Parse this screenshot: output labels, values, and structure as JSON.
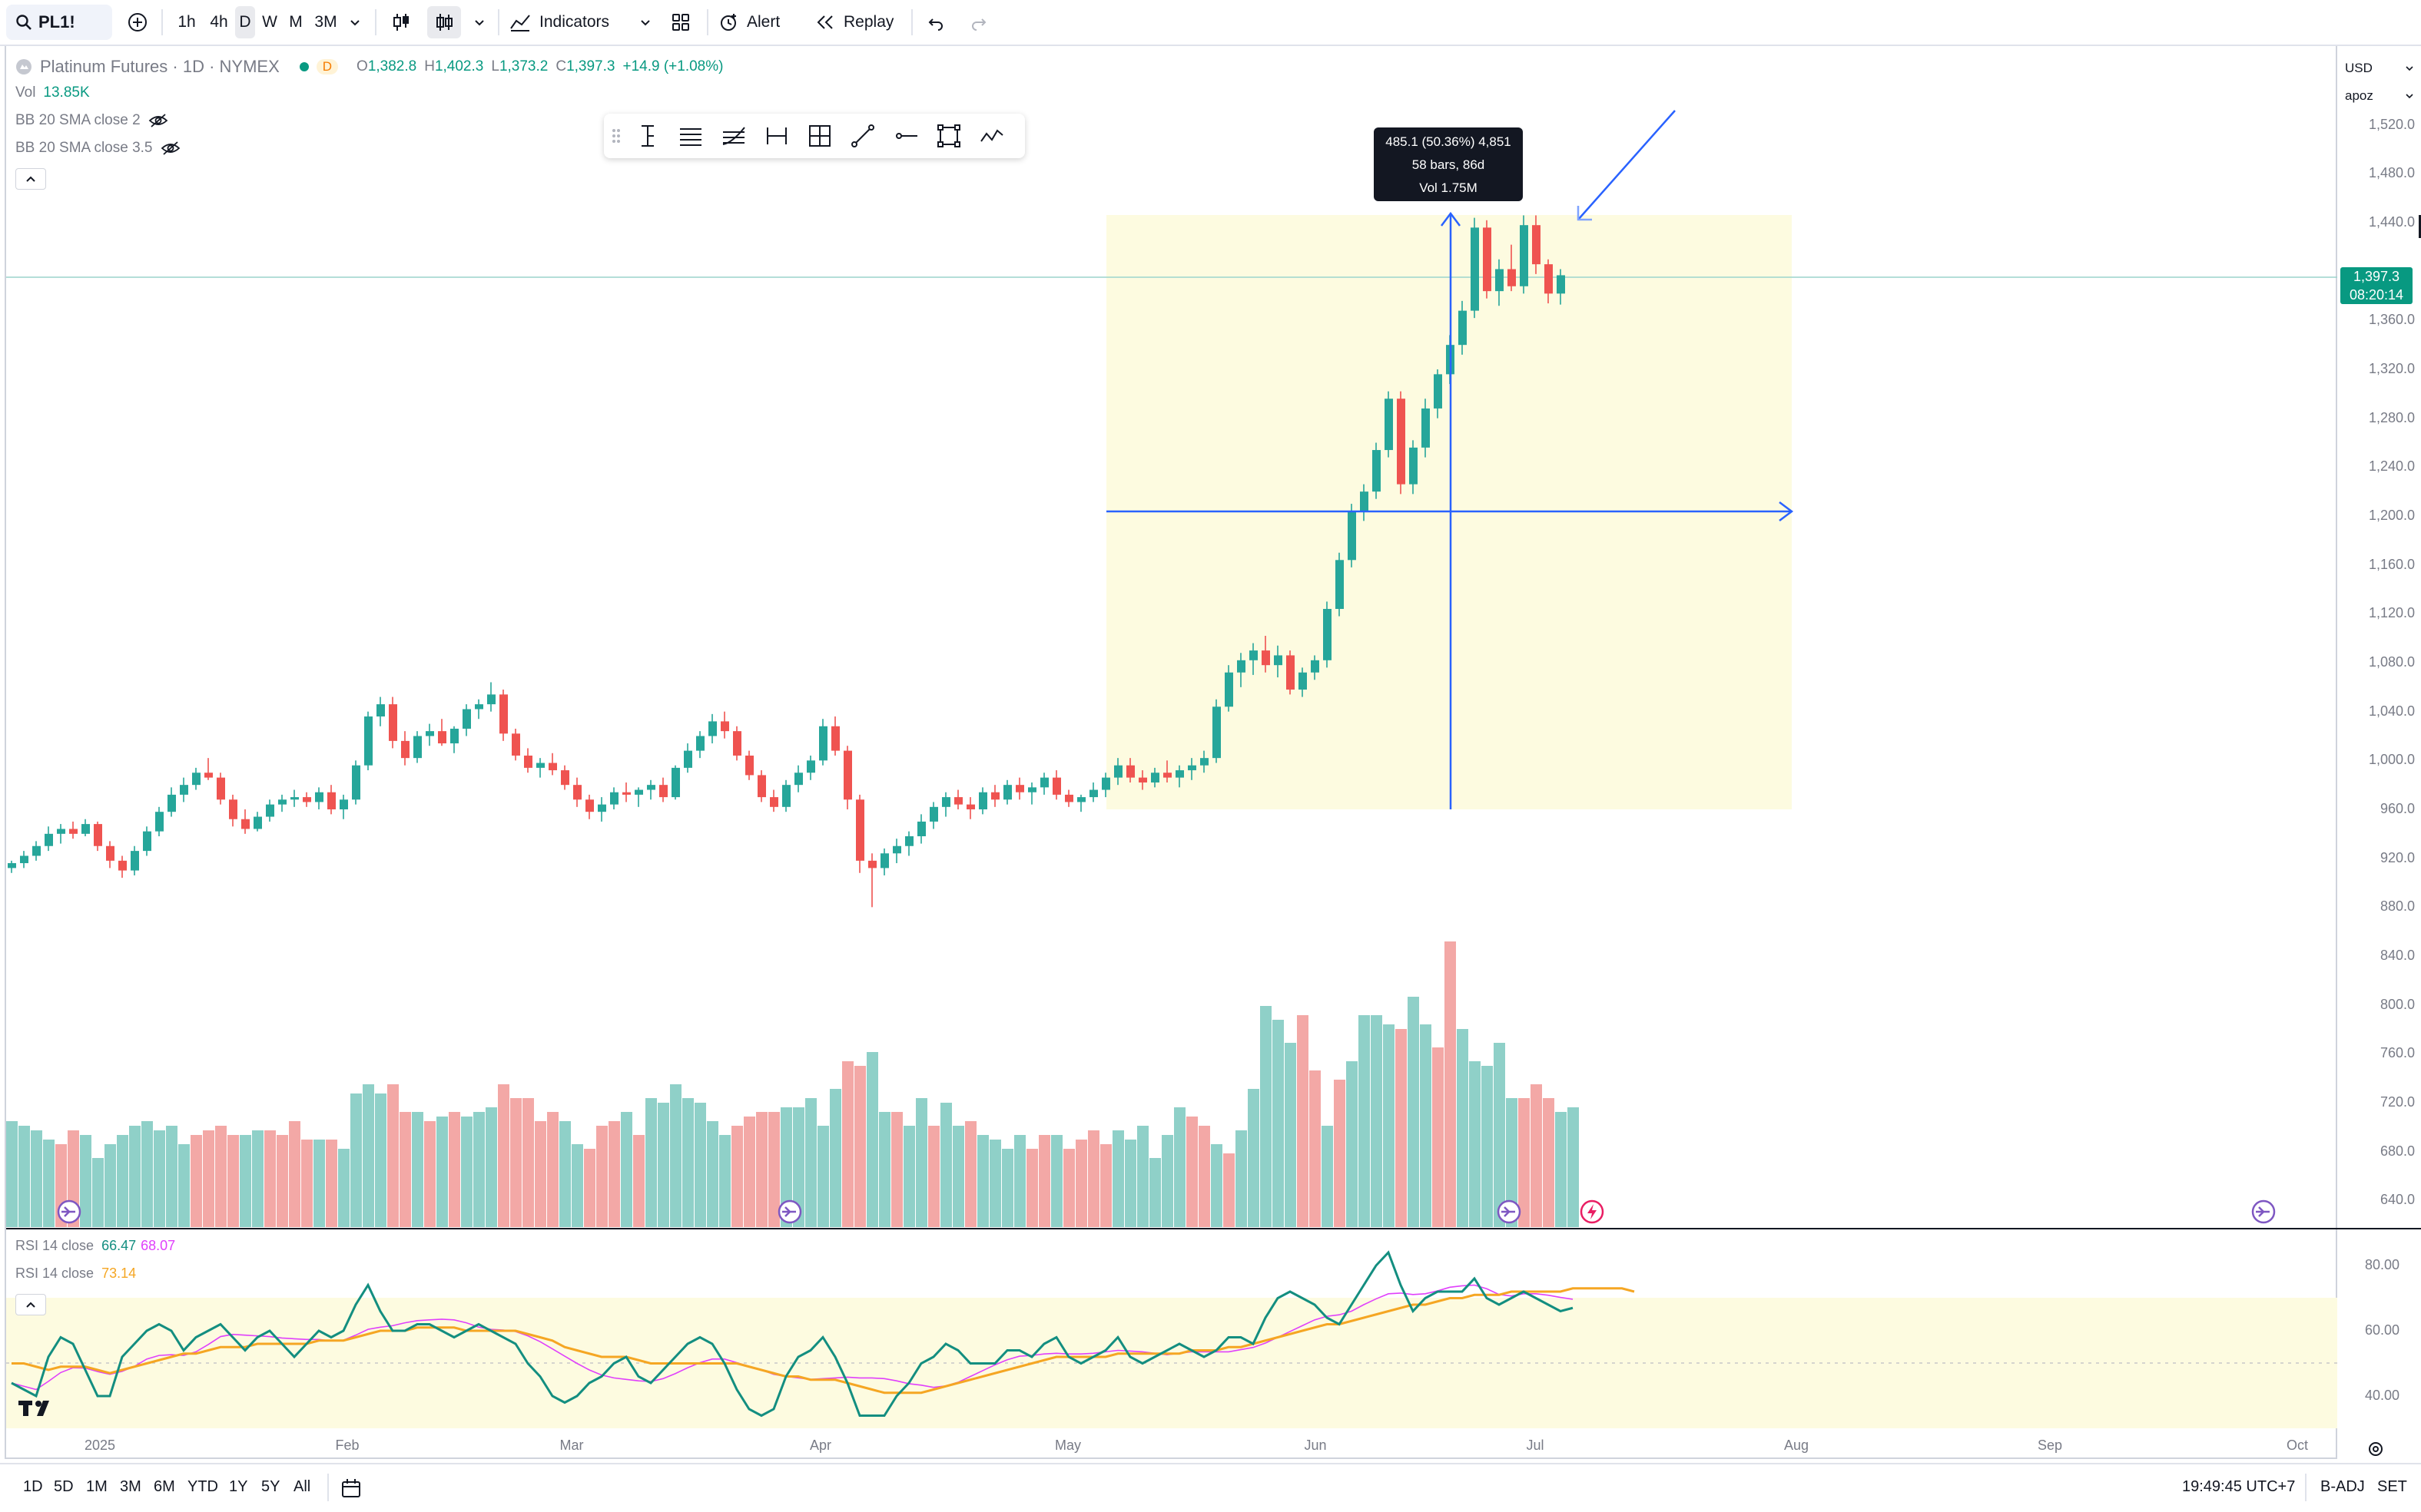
{
  "toolbar": {
    "symbol": "PL1!",
    "intervals": [
      "1h",
      "4h",
      "D",
      "W",
      "M",
      "3M"
    ],
    "active_interval": "D",
    "indicators_label": "Indicators",
    "alert_label": "Alert",
    "replay_label": "Replay"
  },
  "legend": {
    "title": "Platinum Futures · 1D · NYMEX",
    "badge": "D",
    "open_label": "O",
    "open": "1,382.8",
    "high_label": "H",
    "high": "1,402.3",
    "low_label": "L",
    "low": "1,373.2",
    "close_label": "C",
    "close": "1,397.3",
    "change": "+14.9 (+1.08%)",
    "vol_label": "Vol",
    "vol_value": "13.85K",
    "bb1": "BB 20 SMA close 2",
    "bb2": "BB 20 SMA close 3.5"
  },
  "rsi_legend": {
    "rsi1_label": "RSI 14 close",
    "rsi1_value_a": "66.47",
    "rsi1_value_b": "68.07",
    "rsi2_label": "RSI 14 close",
    "rsi2_value": "73.14"
  },
  "measure": {
    "line1": "485.1 (50.36%) 4,851",
    "line2": "58 bars, 86d",
    "line3": "Vol 1.75M"
  },
  "price_axis": {
    "currency": "USD",
    "unit": "apoz",
    "labels": [
      "1,520.0",
      "1,480.0",
      "1,440.0",
      "1,360.0",
      "1,320.0",
      "1,280.0",
      "1,240.0",
      "1,200.0",
      "1,160.0",
      "1,120.0",
      "1,080.0",
      "1,040.0",
      "1,000.0",
      "960.0",
      "920.0",
      "880.0",
      "840.0",
      "800.0",
      "760.0",
      "720.0",
      "680.0",
      "640.0"
    ],
    "last_price": "1,397.3",
    "countdown": "08:20:14",
    "rsi_labels": [
      "80.00",
      "60.00",
      "40.00"
    ]
  },
  "time_axis": {
    "labels": [
      "2025",
      "Feb",
      "Mar",
      "Apr",
      "May",
      "Jun",
      "Jul",
      "Aug",
      "Sep",
      "Oct"
    ]
  },
  "bottom": {
    "ranges": [
      "1D",
      "5D",
      "1M",
      "3M",
      "6M",
      "YTD",
      "1Y",
      "5Y",
      "All"
    ],
    "clock": "19:49:45 UTC+7",
    "adj": "B-ADJ",
    "session": "SET"
  },
  "colors": {
    "up": "#26a69a",
    "down": "#ef5350",
    "vol_up": "#8fd0c8",
    "vol_down": "#f3a8a6",
    "measure_bg": "#fdfbe0",
    "measure_line": "#2962ff",
    "rsi_line": "#138e80",
    "rsi_ma": "#e040fb",
    "rsi2": "#f5a623"
  },
  "chart_data": {
    "type": "candlestick",
    "note_units": "price USD/oz",
    "candles": [
      [
        912,
        918,
        908,
        916
      ],
      [
        916,
        926,
        912,
        922
      ],
      [
        922,
        934,
        918,
        930
      ],
      [
        930,
        946,
        926,
        940
      ],
      [
        940,
        948,
        932,
        944
      ],
      [
        944,
        950,
        936,
        940
      ],
      [
        940,
        952,
        938,
        948
      ],
      [
        948,
        950,
        926,
        930
      ],
      [
        930,
        934,
        912,
        918
      ],
      [
        918,
        922,
        904,
        910
      ],
      [
        910,
        930,
        906,
        926
      ],
      [
        926,
        946,
        922,
        942
      ],
      [
        942,
        962,
        938,
        958
      ],
      [
        958,
        978,
        954,
        972
      ],
      [
        972,
        986,
        966,
        980
      ],
      [
        980,
        994,
        976,
        990
      ],
      [
        990,
        1002,
        984,
        986
      ],
      [
        986,
        990,
        964,
        968
      ],
      [
        968,
        972,
        946,
        952
      ],
      [
        952,
        960,
        940,
        944
      ],
      [
        944,
        958,
        942,
        954
      ],
      [
        954,
        968,
        950,
        964
      ],
      [
        964,
        972,
        958,
        968
      ],
      [
        968,
        976,
        962,
        970
      ],
      [
        970,
        974,
        962,
        966
      ],
      [
        966,
        978,
        960,
        974
      ],
      [
        974,
        980,
        956,
        960
      ],
      [
        960,
        972,
        952,
        968
      ],
      [
        968,
        1000,
        964,
        996
      ],
      [
        996,
        1040,
        992,
        1036
      ],
      [
        1036,
        1052,
        1028,
        1046
      ],
      [
        1046,
        1052,
        1010,
        1016
      ],
      [
        1016,
        1024,
        996,
        1002
      ],
      [
        1002,
        1024,
        998,
        1020
      ],
      [
        1020,
        1030,
        1012,
        1024
      ],
      [
        1024,
        1034,
        1012,
        1014
      ],
      [
        1014,
        1028,
        1006,
        1026
      ],
      [
        1026,
        1046,
        1020,
        1042
      ],
      [
        1042,
        1050,
        1034,
        1046
      ],
      [
        1046,
        1064,
        1040,
        1054
      ],
      [
        1054,
        1058,
        1016,
        1022
      ],
      [
        1022,
        1026,
        1000,
        1004
      ],
      [
        1004,
        1010,
        990,
        994
      ],
      [
        994,
        1002,
        986,
        998
      ],
      [
        998,
        1006,
        988,
        992
      ],
      [
        992,
        996,
        976,
        980
      ],
      [
        980,
        986,
        962,
        968
      ],
      [
        968,
        972,
        952,
        958
      ],
      [
        958,
        970,
        950,
        964
      ],
      [
        964,
        978,
        960,
        974
      ],
      [
        974,
        982,
        966,
        972
      ],
      [
        972,
        978,
        962,
        976
      ],
      [
        976,
        984,
        968,
        980
      ],
      [
        980,
        986,
        966,
        970
      ],
      [
        970,
        996,
        968,
        994
      ],
      [
        994,
        1014,
        990,
        1008
      ],
      [
        1008,
        1024,
        1002,
        1020
      ],
      [
        1020,
        1038,
        1014,
        1032
      ],
      [
        1032,
        1040,
        1018,
        1024
      ],
      [
        1024,
        1028,
        1000,
        1004
      ],
      [
        1004,
        1008,
        984,
        988
      ],
      [
        988,
        992,
        966,
        970
      ],
      [
        970,
        976,
        958,
        962
      ],
      [
        962,
        984,
        958,
        980
      ],
      [
        980,
        996,
        974,
        990
      ],
      [
        990,
        1004,
        984,
        1000
      ],
      [
        1000,
        1034,
        996,
        1028
      ],
      [
        1028,
        1036,
        1004,
        1008
      ],
      [
        1008,
        1012,
        960,
        968
      ],
      [
        968,
        972,
        908,
        918
      ],
      [
        918,
        924,
        880,
        912
      ],
      [
        912,
        928,
        906,
        924
      ],
      [
        924,
        936,
        916,
        930
      ],
      [
        930,
        942,
        922,
        938
      ],
      [
        938,
        956,
        932,
        950
      ],
      [
        950,
        966,
        944,
        962
      ],
      [
        962,
        974,
        954,
        970
      ],
      [
        970,
        976,
        960,
        964
      ],
      [
        964,
        970,
        952,
        960
      ],
      [
        960,
        978,
        956,
        974
      ],
      [
        974,
        980,
        962,
        968
      ],
      [
        968,
        984,
        964,
        980
      ],
      [
        980,
        986,
        968,
        974
      ],
      [
        974,
        982,
        964,
        978
      ],
      [
        978,
        990,
        972,
        986
      ],
      [
        986,
        992,
        968,
        972
      ],
      [
        972,
        976,
        962,
        966
      ],
      [
        966,
        972,
        958,
        970
      ],
      [
        970,
        982,
        966,
        976
      ],
      [
        976,
        990,
        970,
        986
      ],
      [
        986,
        1002,
        980,
        996
      ],
      [
        996,
        1002,
        982,
        986
      ],
      [
        986,
        992,
        976,
        982
      ],
      [
        982,
        994,
        978,
        990
      ],
      [
        990,
        1000,
        982,
        986
      ],
      [
        986,
        996,
        978,
        992
      ],
      [
        992,
        1002,
        984,
        996
      ],
      [
        996,
        1008,
        990,
        1002
      ],
      [
        1002,
        1050,
        998,
        1044
      ],
      [
        1044,
        1078,
        1040,
        1072
      ],
      [
        1072,
        1088,
        1060,
        1082
      ],
      [
        1082,
        1096,
        1070,
        1090
      ],
      [
        1090,
        1102,
        1072,
        1078
      ],
      [
        1078,
        1094,
        1068,
        1086
      ],
      [
        1086,
        1090,
        1054,
        1058
      ],
      [
        1058,
        1076,
        1052,
        1072
      ],
      [
        1072,
        1086,
        1066,
        1082
      ],
      [
        1082,
        1130,
        1076,
        1124
      ],
      [
        1124,
        1170,
        1118,
        1164
      ],
      [
        1164,
        1210,
        1158,
        1204
      ],
      [
        1204,
        1226,
        1196,
        1220
      ],
      [
        1220,
        1260,
        1214,
        1254
      ],
      [
        1254,
        1302,
        1248,
        1296
      ],
      [
        1296,
        1302,
        1218,
        1226
      ],
      [
        1226,
        1262,
        1218,
        1256
      ],
      [
        1256,
        1296,
        1248,
        1288
      ],
      [
        1288,
        1320,
        1280,
        1316
      ],
      [
        1316,
        1348,
        1308,
        1340
      ],
      [
        1340,
        1376,
        1332,
        1368
      ],
      [
        1368,
        1444,
        1362,
        1436
      ],
      [
        1436,
        1442,
        1378,
        1384
      ],
      [
        1384,
        1410,
        1372,
        1402
      ],
      [
        1402,
        1422,
        1384,
        1388
      ],
      [
        1388,
        1446,
        1382,
        1438
      ],
      [
        1438,
        1446,
        1398,
        1406
      ],
      [
        1406,
        1410,
        1374,
        1382
      ],
      [
        1382,
        1402,
        1373,
        1397
      ]
    ],
    "volume_note": "relative bar heights",
    "volumes": [
      [
        0.46,
        1
      ],
      [
        0.44,
        1
      ],
      [
        0.42,
        1
      ],
      [
        0.38,
        1
      ],
      [
        0.36,
        0
      ],
      [
        0.42,
        0
      ],
      [
        0.4,
        1
      ],
      [
        0.3,
        1
      ],
      [
        0.36,
        1
      ],
      [
        0.4,
        1
      ],
      [
        0.44,
        1
      ],
      [
        0.46,
        1
      ],
      [
        0.42,
        1
      ],
      [
        0.44,
        1
      ],
      [
        0.36,
        1
      ],
      [
        0.4,
        0
      ],
      [
        0.42,
        0
      ],
      [
        0.44,
        0
      ],
      [
        0.4,
        0
      ],
      [
        0.4,
        1
      ],
      [
        0.42,
        1
      ],
      [
        0.42,
        0
      ],
      [
        0.4,
        0
      ],
      [
        0.46,
        0
      ],
      [
        0.38,
        0
      ],
      [
        0.38,
        1
      ],
      [
        0.38,
        0
      ],
      [
        0.34,
        1
      ],
      [
        0.58,
        1
      ],
      [
        0.62,
        1
      ],
      [
        0.58,
        1
      ],
      [
        0.62,
        0
      ],
      [
        0.5,
        0
      ],
      [
        0.5,
        1
      ],
      [
        0.46,
        0
      ],
      [
        0.48,
        1
      ],
      [
        0.5,
        0
      ],
      [
        0.48,
        1
      ],
      [
        0.5,
        1
      ],
      [
        0.52,
        1
      ],
      [
        0.62,
        0
      ],
      [
        0.56,
        0
      ],
      [
        0.56,
        0
      ],
      [
        0.46,
        0
      ],
      [
        0.5,
        0
      ],
      [
        0.46,
        1
      ],
      [
        0.36,
        1
      ],
      [
        0.34,
        0
      ],
      [
        0.44,
        0
      ],
      [
        0.46,
        0
      ],
      [
        0.5,
        1
      ],
      [
        0.4,
        0
      ],
      [
        0.56,
        1
      ],
      [
        0.54,
        1
      ],
      [
        0.62,
        1
      ],
      [
        0.56,
        1
      ],
      [
        0.54,
        1
      ],
      [
        0.46,
        1
      ],
      [
        0.4,
        1
      ],
      [
        0.44,
        0
      ],
      [
        0.48,
        0
      ],
      [
        0.5,
        0
      ],
      [
        0.5,
        0
      ],
      [
        0.52,
        1
      ],
      [
        0.52,
        1
      ],
      [
        0.56,
        1
      ],
      [
        0.44,
        1
      ],
      [
        0.6,
        1
      ],
      [
        0.72,
        0
      ],
      [
        0.7,
        0
      ],
      [
        0.76,
        1
      ],
      [
        0.5,
        1
      ],
      [
        0.5,
        0
      ],
      [
        0.44,
        1
      ],
      [
        0.56,
        1
      ],
      [
        0.44,
        0
      ],
      [
        0.54,
        1
      ],
      [
        0.44,
        1
      ],
      [
        0.46,
        0
      ],
      [
        0.4,
        1
      ],
      [
        0.38,
        1
      ],
      [
        0.34,
        1
      ],
      [
        0.4,
        1
      ],
      [
        0.34,
        0
      ],
      [
        0.4,
        0
      ],
      [
        0.4,
        1
      ],
      [
        0.34,
        0
      ],
      [
        0.38,
        0
      ],
      [
        0.42,
        0
      ],
      [
        0.36,
        0
      ],
      [
        0.42,
        1
      ],
      [
        0.38,
        1
      ],
      [
        0.44,
        1
      ],
      [
        0.3,
        1
      ],
      [
        0.4,
        1
      ],
      [
        0.52,
        1
      ],
      [
        0.48,
        0
      ],
      [
        0.44,
        0
      ],
      [
        0.36,
        1
      ],
      [
        0.32,
        0
      ],
      [
        0.42,
        1
      ],
      [
        0.6,
        1
      ],
      [
        0.96,
        1
      ],
      [
        0.9,
        1
      ],
      [
        0.8,
        1
      ],
      [
        0.92,
        0
      ],
      [
        0.68,
        0
      ],
      [
        0.44,
        1
      ],
      [
        0.64,
        0
      ],
      [
        0.72,
        1
      ],
      [
        0.92,
        1
      ],
      [
        0.92,
        1
      ],
      [
        0.88,
        1
      ],
      [
        0.86,
        0
      ],
      [
        1.0,
        1
      ],
      [
        0.88,
        1
      ],
      [
        0.78,
        0
      ],
      [
        1.24,
        0
      ],
      [
        0.86,
        1
      ],
      [
        0.72,
        1
      ],
      [
        0.7,
        1
      ],
      [
        0.8,
        1
      ],
      [
        0.56,
        1
      ],
      [
        0.56,
        0
      ],
      [
        0.62,
        0
      ],
      [
        0.56,
        0
      ],
      [
        0.5,
        1
      ],
      [
        0.52,
        1
      ]
    ],
    "rsi": [
      44,
      42,
      40,
      52,
      58,
      56,
      48,
      40,
      40,
      52,
      56,
      60,
      62,
      60,
      54,
      58,
      60,
      62,
      58,
      54,
      58,
      60,
      56,
      52,
      56,
      60,
      58,
      60,
      68,
      74,
      66,
      60,
      60,
      62,
      62,
      60,
      58,
      60,
      62,
      60,
      58,
      56,
      50,
      46,
      40,
      38,
      40,
      44,
      46,
      50,
      52,
      46,
      44,
      48,
      52,
      56,
      58,
      56,
      50,
      42,
      36,
      34,
      36,
      46,
      52,
      54,
      58,
      52,
      44,
      34,
      34,
      34,
      40,
      44,
      50,
      52,
      56,
      54,
      50,
      50,
      50,
      54,
      54,
      52,
      56,
      58,
      52,
      50,
      52,
      54,
      58,
      52,
      50,
      52,
      54,
      56,
      54,
      52,
      54,
      58,
      58,
      56,
      64,
      70,
      72,
      70,
      68,
      64,
      62,
      68,
      74,
      80,
      84,
      74,
      66,
      70,
      72,
      72,
      72,
      76,
      70,
      68,
      70,
      72,
      70,
      68,
      66,
      67
    ],
    "rsi_ma": [
      50,
      50,
      49,
      48,
      49,
      49,
      49,
      48,
      47,
      48,
      49,
      50,
      51,
      52,
      53,
      53,
      54,
      55,
      55,
      55,
      56,
      56,
      56,
      56,
      56,
      57,
      57,
      57,
      58,
      59,
      60,
      60,
      60,
      61,
      61,
      61,
      61,
      60,
      60,
      60,
      60,
      60,
      59,
      58,
      57,
      55,
      54,
      53,
      52,
      52,
      52,
      51,
      50,
      50,
      50,
      50,
      50,
      50,
      50,
      50,
      49,
      48,
      47,
      46,
      46,
      45,
      45,
      45,
      44,
      43,
      42,
      41,
      41,
      41,
      41,
      42,
      43,
      44,
      45,
      46,
      47,
      48,
      49,
      50,
      51,
      52,
      52,
      52,
      52,
      52,
      53,
      53,
      53,
      53,
      53,
      53,
      54,
      54,
      54,
      55,
      55,
      56,
      57,
      58,
      59,
      60,
      61,
      62,
      62,
      63,
      64,
      65,
      66,
      67,
      68,
      68,
      69,
      70,
      70,
      71,
      71,
      71,
      72,
      72,
      72,
      72,
      72,
      73
    ]
  }
}
